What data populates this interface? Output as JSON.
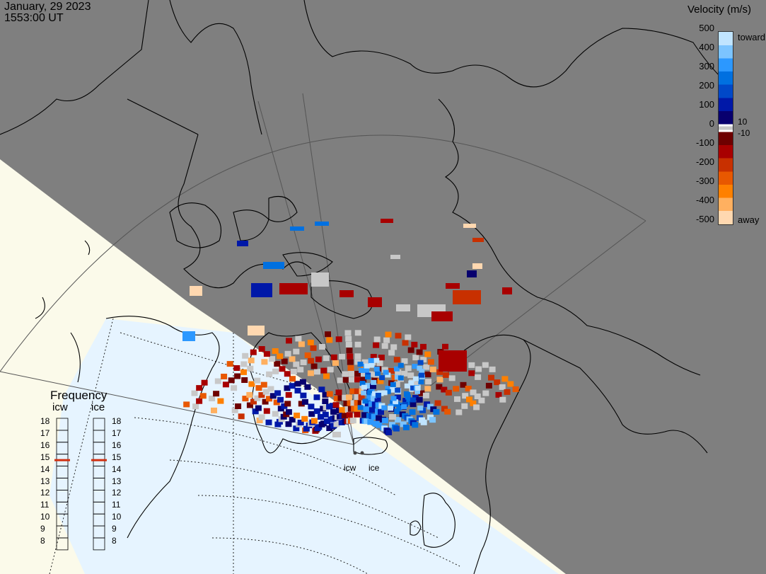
{
  "header": {
    "date": "January, 29 2023",
    "time": "1553:00 UT"
  },
  "colorbar": {
    "title": "Velocity (m/s)",
    "ticks": [
      "500",
      "400",
      "300",
      "200",
      "100",
      "0",
      "-100",
      "-200",
      "-300",
      "-400",
      "-500"
    ],
    "toward_label": "toward",
    "away_label": "away",
    "plus10": "10",
    "minus10": "-10",
    "colors": {
      "toward": [
        "#08006e",
        "#0018a8",
        "#0048c8",
        "#0070e0",
        "#2c98ff",
        "#7cc4ff",
        "#c0e4ff"
      ],
      "away": [
        "#6e0000",
        "#a80000",
        "#c83000",
        "#e85800",
        "#ff8000",
        "#ffb060",
        "#ffd8b0"
      ],
      "ground": "#c8c8c8"
    }
  },
  "frequency_panel": {
    "title": "Frequency",
    "columns": [
      {
        "name": "icw",
        "selected": 15
      },
      {
        "name": "ice",
        "selected": 15
      }
    ],
    "levels": [
      "18",
      "17",
      "16",
      "15",
      "14",
      "13",
      "12",
      "11",
      "10",
      "9",
      "8"
    ]
  },
  "sites": {
    "icw_label": "icw",
    "ice_label": "ice"
  },
  "map_colors": {
    "night": "#7f7f7f",
    "day_land": "#fbfaea",
    "day_sea": "#e6f4ff",
    "coast": "#000000"
  }
}
